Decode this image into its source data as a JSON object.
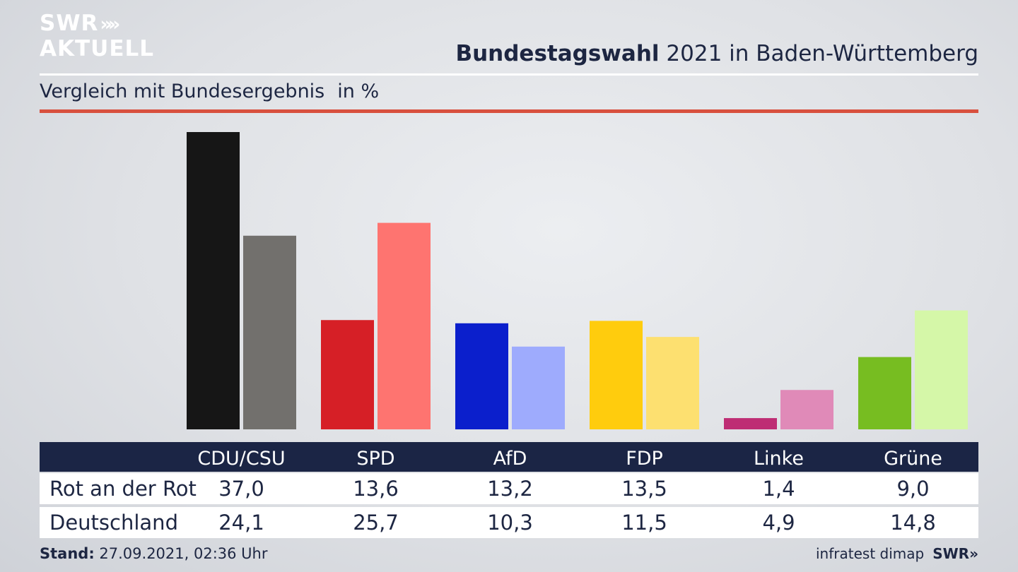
{
  "brand": {
    "logo_line1": "SWR",
    "logo_line2": "AKTUELL",
    "logo_chevrons": "»»",
    "footer_logo": "SWR»"
  },
  "header": {
    "title_bold": "Bundestagswahl",
    "title_rest": " 2021 in Baden-Württemberg",
    "subtitle": "Vergleich mit Bundesergebnis",
    "unit": "in %"
  },
  "footer": {
    "stand_label": "Stand:",
    "stand_value": " 27.09.2021, 02:36 Uhr",
    "source": "infratest dimap"
  },
  "colors": {
    "header_bar": "#1b2545",
    "accent_rule": "#d8503e"
  },
  "chart_data": {
    "type": "bar",
    "title": "Bundestagswahl 2021 in Baden-Württemberg",
    "subtitle": "Vergleich mit Bundesergebnis",
    "ylabel": "in %",
    "ylim": [
      0,
      37.0
    ],
    "grid": false,
    "categories": [
      "CDU/CSU",
      "SPD",
      "AfD",
      "FDP",
      "Linke",
      "Grüne"
    ],
    "series": [
      {
        "name": "Rot an der Rot",
        "values": [
          37.0,
          13.6,
          13.2,
          13.5,
          1.4,
          9.0
        ],
        "labels": [
          "37,0",
          "13,6",
          "13,2",
          "13,5",
          "1,4",
          "9,0"
        ],
        "colors": [
          "#161616",
          "#d61f26",
          "#0b1fcc",
          "#ffcc0d",
          "#be2d74",
          "#77bd21"
        ]
      },
      {
        "name": "Deutschland",
        "values": [
          24.1,
          25.7,
          10.3,
          11.5,
          4.9,
          14.8
        ],
        "labels": [
          "24,1",
          "25,7",
          "10,3",
          "11,5",
          "4,9",
          "14,8"
        ],
        "colors": [
          "#72706d",
          "#fe7470",
          "#9eabfd",
          "#fde070",
          "#e08ab8",
          "#d5f7a8"
        ]
      }
    ]
  }
}
